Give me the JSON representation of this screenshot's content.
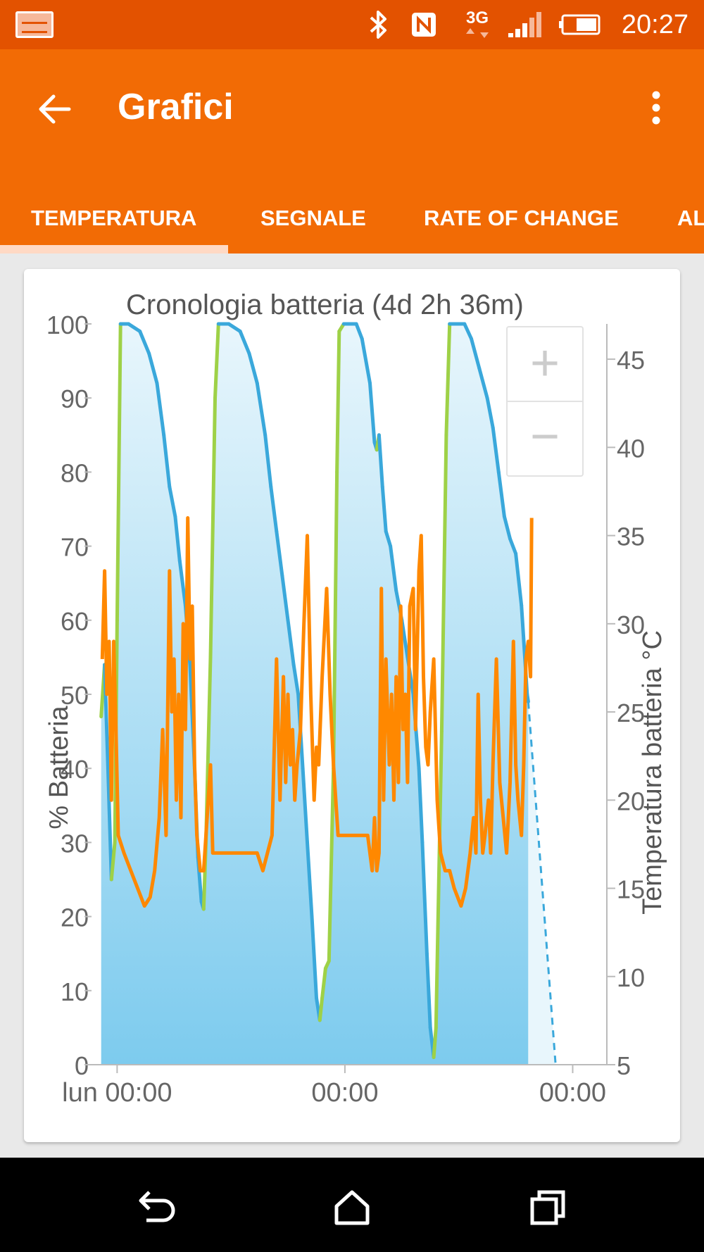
{
  "status_bar": {
    "time": "20:27",
    "network_label": "3G",
    "icons": [
      "screenshot-thumbnail-icon",
      "bluetooth-icon",
      "nfc-icon",
      "3g-data-icon",
      "signal-icon",
      "battery-icon"
    ]
  },
  "app_bar": {
    "title": "Grafici",
    "back_icon": "arrow-back-icon",
    "menu_icon": "overflow-menu-icon"
  },
  "tabs": [
    {
      "label": "TEMPERATURA",
      "selected": true
    },
    {
      "label": "SEGNALE",
      "selected": false
    },
    {
      "label": "RATE OF CHANGE",
      "selected": false
    },
    {
      "label": "AL",
      "selected": false
    }
  ],
  "zoom_controls": {
    "zoom_in": "+",
    "zoom_out": "−"
  },
  "chart_data": {
    "type": "line",
    "title": "Cronologia batteria (4d 2h 36m)",
    "ylabel_left": "% Batteria",
    "ylabel_right": "Temperatura batteria °C",
    "x_ticks": [
      "lun 00:00",
      "00:00",
      "00:00"
    ],
    "y_left_ticks": [
      "0",
      "10",
      "20",
      "30",
      "40",
      "50",
      "60",
      "70",
      "80",
      "90",
      "100"
    ],
    "y_left_range": [
      0,
      100
    ],
    "y_right_ticks": [
      "5",
      "10",
      "15",
      "20",
      "25",
      "30",
      "35",
      "40",
      "45"
    ],
    "y_right_range": [
      5,
      47
    ],
    "x_range_hours": [
      -2,
      43
    ],
    "colors": {
      "discharge": "#3aa8db",
      "charge": "#9ed147",
      "temperature": "#ff8800",
      "fill": "#8fd0ef"
    },
    "series": [
      {
        "name": "% Batteria",
        "unit": "%",
        "points": [
          [
            -1.4,
            47
          ],
          [
            -1.1,
            54
          ],
          [
            -0.8,
            40
          ],
          [
            -0.5,
            25
          ],
          [
            -0.2,
            30
          ],
          [
            0.0,
            60
          ],
          [
            0.3,
            100
          ],
          [
            1.0,
            100
          ],
          [
            2.0,
            99
          ],
          [
            2.8,
            96
          ],
          [
            3.5,
            92
          ],
          [
            4.1,
            85
          ],
          [
            4.6,
            78
          ],
          [
            5.1,
            74
          ],
          [
            5.5,
            68
          ],
          [
            6.0,
            62
          ],
          [
            6.4,
            54
          ],
          [
            6.8,
            40
          ],
          [
            7.1,
            28
          ],
          [
            7.4,
            22
          ],
          [
            7.6,
            21
          ],
          [
            7.8,
            30
          ],
          [
            8.2,
            55
          ],
          [
            8.6,
            90
          ],
          [
            8.9,
            100
          ],
          [
            9.8,
            100
          ],
          [
            10.8,
            99
          ],
          [
            11.6,
            96
          ],
          [
            12.3,
            92
          ],
          [
            13.0,
            85
          ],
          [
            13.5,
            78
          ],
          [
            14.0,
            72
          ],
          [
            14.5,
            66
          ],
          [
            15.0,
            60
          ],
          [
            15.5,
            54
          ],
          [
            15.9,
            50
          ],
          [
            16.3,
            40
          ],
          [
            16.7,
            30
          ],
          [
            17.1,
            20
          ],
          [
            17.5,
            9
          ],
          [
            17.8,
            6
          ],
          [
            18.0,
            9
          ],
          [
            18.3,
            13
          ],
          [
            18.6,
            14
          ],
          [
            19.0,
            40
          ],
          [
            19.3,
            80
          ],
          [
            19.5,
            99
          ],
          [
            19.9,
            100
          ],
          [
            21.0,
            100
          ],
          [
            21.5,
            98
          ],
          [
            22.2,
            92
          ],
          [
            22.6,
            84
          ],
          [
            22.8,
            83
          ],
          [
            23.0,
            85
          ],
          [
            23.3,
            78
          ],
          [
            23.6,
            72
          ],
          [
            24.0,
            70
          ],
          [
            24.5,
            64
          ],
          [
            25.0,
            60
          ],
          [
            25.5,
            55
          ],
          [
            26.0,
            50
          ],
          [
            26.5,
            40
          ],
          [
            26.8,
            30
          ],
          [
            27.2,
            15
          ],
          [
            27.5,
            5
          ],
          [
            27.8,
            1
          ],
          [
            28.0,
            5
          ],
          [
            28.5,
            45
          ],
          [
            28.9,
            85
          ],
          [
            29.2,
            100
          ],
          [
            30.5,
            100
          ],
          [
            31.1,
            98
          ],
          [
            31.8,
            94
          ],
          [
            32.5,
            90
          ],
          [
            33.0,
            86
          ],
          [
            33.5,
            80
          ],
          [
            34.0,
            74
          ],
          [
            34.5,
            71
          ],
          [
            35.0,
            69
          ],
          [
            35.5,
            62
          ],
          [
            35.8,
            55
          ],
          [
            36.0,
            50
          ],
          [
            36.1,
            49
          ]
        ]
      },
      {
        "name": "Temperatura batteria °C",
        "unit": "°C",
        "points": [
          [
            -1.3,
            28
          ],
          [
            -1.1,
            33
          ],
          [
            -0.9,
            26
          ],
          [
            -0.7,
            29
          ],
          [
            -0.5,
            20
          ],
          [
            -0.3,
            29
          ],
          [
            -0.1,
            24
          ],
          [
            0.1,
            18
          ],
          [
            0.6,
            17
          ],
          [
            1.2,
            16
          ],
          [
            1.8,
            15
          ],
          [
            2.4,
            14
          ],
          [
            2.9,
            14.5
          ],
          [
            3.3,
            16
          ],
          [
            3.7,
            19
          ],
          [
            4.0,
            24
          ],
          [
            4.3,
            18
          ],
          [
            4.6,
            33
          ],
          [
            4.8,
            25
          ],
          [
            5.0,
            28
          ],
          [
            5.2,
            20
          ],
          [
            5.4,
            26
          ],
          [
            5.6,
            19
          ],
          [
            5.8,
            30
          ],
          [
            6.0,
            24
          ],
          [
            6.2,
            36
          ],
          [
            6.4,
            28
          ],
          [
            6.6,
            31
          ],
          [
            6.8,
            22
          ],
          [
            7.0,
            18
          ],
          [
            7.3,
            16
          ],
          [
            7.6,
            16
          ],
          [
            7.9,
            19
          ],
          [
            8.2,
            22
          ],
          [
            8.4,
            17
          ],
          [
            9.0,
            17
          ],
          [
            10.5,
            17
          ],
          [
            11.5,
            17
          ],
          [
            12.3,
            17
          ],
          [
            12.8,
            16
          ],
          [
            13.2,
            17
          ],
          [
            13.6,
            18
          ],
          [
            14.0,
            28
          ],
          [
            14.3,
            20
          ],
          [
            14.6,
            27
          ],
          [
            14.8,
            21
          ],
          [
            15.0,
            26
          ],
          [
            15.2,
            22
          ],
          [
            15.4,
            24
          ],
          [
            15.6,
            20
          ],
          [
            15.8,
            22
          ],
          [
            16.1,
            24
          ],
          [
            16.4,
            30
          ],
          [
            16.7,
            35
          ],
          [
            17.0,
            26
          ],
          [
            17.3,
            20
          ],
          [
            17.5,
            23
          ],
          [
            17.7,
            22
          ],
          [
            18.0,
            27
          ],
          [
            18.4,
            32
          ],
          [
            18.7,
            26
          ],
          [
            19.0,
            22
          ],
          [
            19.4,
            18
          ],
          [
            20.0,
            18
          ],
          [
            21.0,
            18
          ],
          [
            22.0,
            18
          ],
          [
            22.4,
            16
          ],
          [
            22.6,
            19
          ],
          [
            22.8,
            16
          ],
          [
            23.0,
            17
          ],
          [
            23.2,
            32
          ],
          [
            23.4,
            20
          ],
          [
            23.6,
            28
          ],
          [
            23.9,
            22
          ],
          [
            24.1,
            26
          ],
          [
            24.3,
            20
          ],
          [
            24.5,
            27
          ],
          [
            24.7,
            21
          ],
          [
            24.9,
            31
          ],
          [
            25.1,
            24
          ],
          [
            25.3,
            26
          ],
          [
            25.5,
            21
          ],
          [
            25.7,
            31
          ],
          [
            26.0,
            32
          ],
          [
            26.2,
            24
          ],
          [
            26.5,
            33
          ],
          [
            26.7,
            35
          ],
          [
            26.9,
            27
          ],
          [
            27.1,
            23
          ],
          [
            27.3,
            22
          ],
          [
            27.5,
            25
          ],
          [
            27.8,
            28
          ],
          [
            28.1,
            20
          ],
          [
            28.4,
            17
          ],
          [
            28.8,
            16
          ],
          [
            29.2,
            16
          ],
          [
            29.6,
            15
          ],
          [
            30.2,
            14
          ],
          [
            30.6,
            15
          ],
          [
            31.0,
            17
          ],
          [
            31.3,
            19
          ],
          [
            31.5,
            17
          ],
          [
            31.7,
            26
          ],
          [
            31.9,
            20
          ],
          [
            32.1,
            17
          ],
          [
            32.3,
            18
          ],
          [
            32.6,
            20
          ],
          [
            32.8,
            17
          ],
          [
            33.0,
            22
          ],
          [
            33.3,
            28
          ],
          [
            33.6,
            21
          ],
          [
            33.9,
            19
          ],
          [
            34.2,
            17
          ],
          [
            34.5,
            21
          ],
          [
            34.8,
            29
          ],
          [
            35.0,
            22
          ],
          [
            35.2,
            20
          ],
          [
            35.5,
            18
          ],
          [
            35.7,
            22
          ],
          [
            35.9,
            28
          ],
          [
            36.1,
            29
          ],
          [
            36.3,
            27
          ],
          [
            36.4,
            36
          ]
        ]
      }
    ],
    "projection": {
      "from": [
        36.1,
        49
      ],
      "to": [
        38.5,
        0
      ]
    }
  },
  "nav_bar": {
    "icons": [
      "back-icon",
      "home-icon",
      "recents-icon"
    ]
  }
}
